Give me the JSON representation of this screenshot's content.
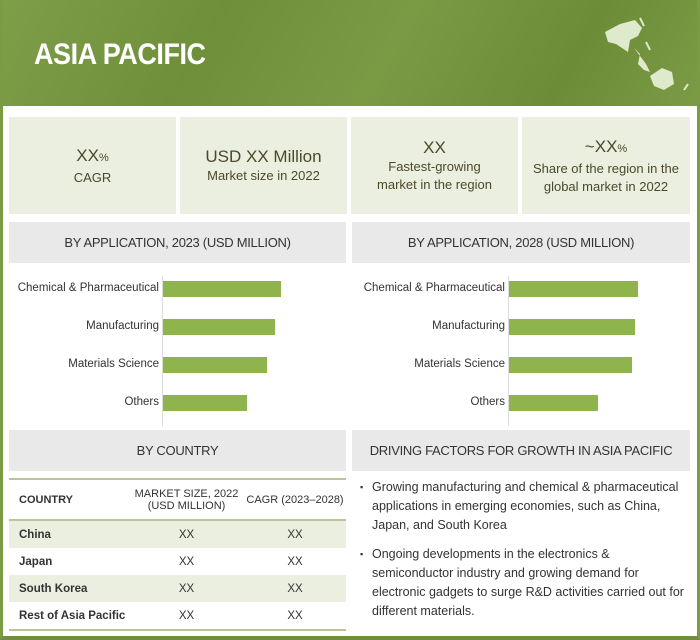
{
  "header": {
    "title": "ASIA PACIFIC",
    "icon": "asia-pacific-map-icon"
  },
  "cards": [
    {
      "value": "XX",
      "unit": "%",
      "label": "CAGR"
    },
    {
      "value": "USD XX Million",
      "label": "Market size in 2022"
    },
    {
      "value": "XX",
      "label": "Fastest-growing market in the region"
    },
    {
      "value": "~XX",
      "unit": "%",
      "label": "Share of the region in the global market in 2022"
    }
  ],
  "chart_data": [
    {
      "type": "bar",
      "title": "BY APPLICATION, 2023 (USD MILLION)",
      "orientation": "horizontal",
      "categories": [
        "Chemical & Pharmaceutical",
        "Manufacturing",
        "Materials Science",
        "Others"
      ],
      "values_relative_percent": [
        100,
        95,
        88,
        71
      ]
    },
    {
      "type": "bar",
      "title": "BY APPLICATION, 2028 (USD MILLION)",
      "orientation": "horizontal",
      "categories": [
        "Chemical & Pharmaceutical",
        "Manufacturing",
        "Materials Science",
        "Others"
      ],
      "values_relative_percent": [
        100,
        98,
        95,
        69
      ]
    }
  ],
  "country": {
    "title": "BY COUNTRY",
    "headers": [
      "COUNTRY",
      "MARKET SIZE, 2022 (USD MILLION)",
      "CAGR (2023–2028)"
    ],
    "rows": [
      [
        "China",
        "XX",
        "XX"
      ],
      [
        "Japan",
        "XX",
        "XX"
      ],
      [
        "South Korea",
        "XX",
        "XX"
      ],
      [
        "Rest of Asia Pacific",
        "XX",
        "XX"
      ]
    ]
  },
  "drivers": {
    "title": "DRIVING FACTORS FOR GROWTH IN ASIA PACIFIC",
    "items": [
      "Growing manufacturing and chemical & pharmaceutical applications in emerging economies, such as China, Japan, and South Korea",
      "Ongoing developments in the electronics & semiconductor industry and growing demand for electronic gadgets to surge R&D activities carried out for different materials."
    ]
  },
  "colors": {
    "brand": "#76963f",
    "bar": "#8fb34d",
    "card": "#eaefdf"
  }
}
